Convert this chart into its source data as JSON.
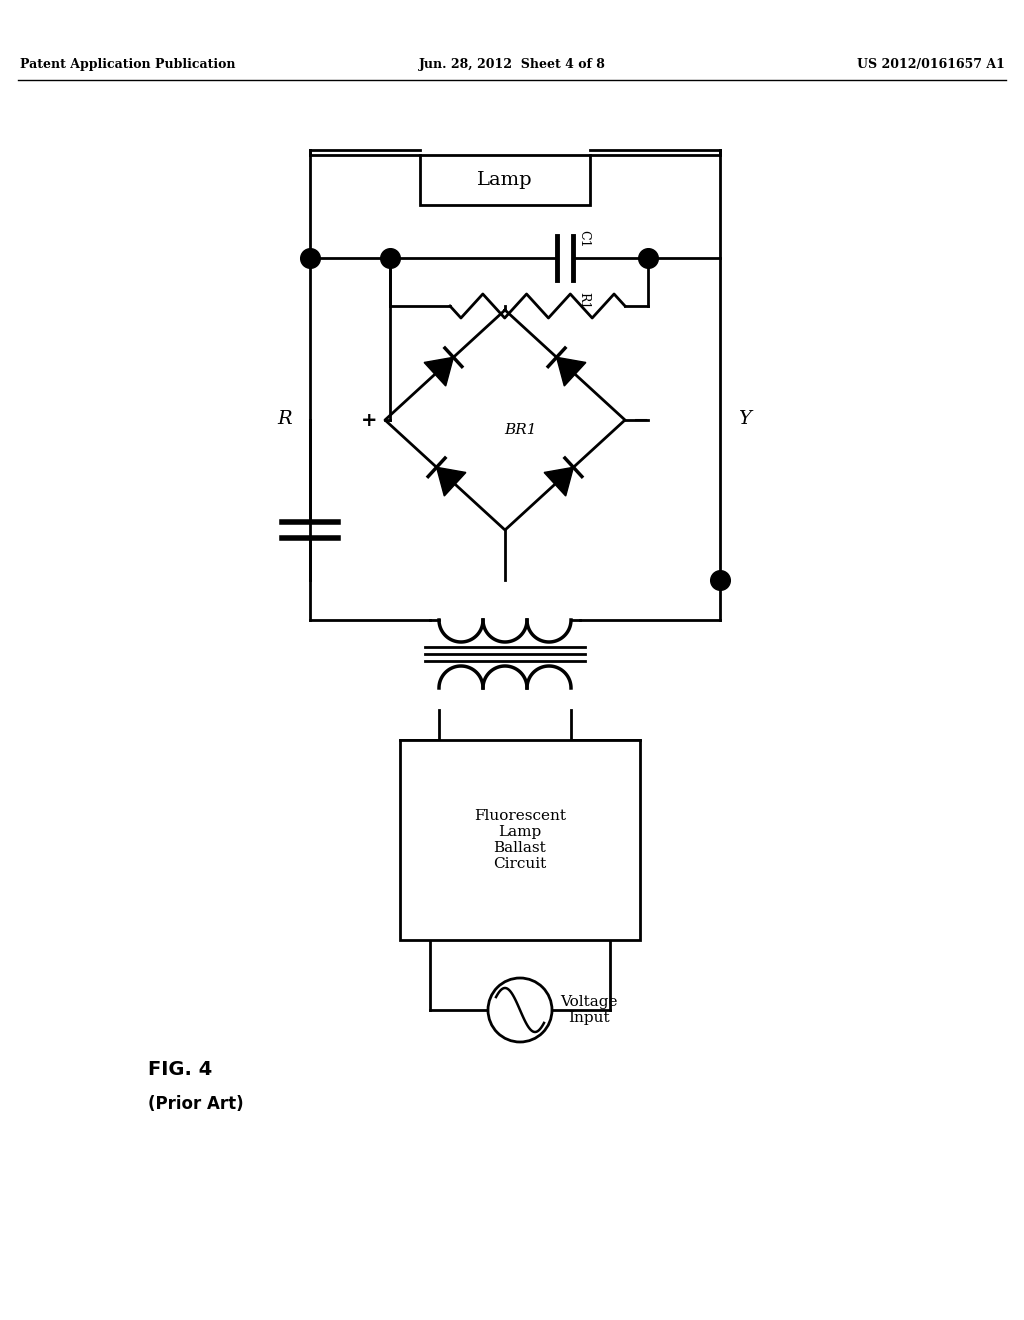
{
  "bg_color": "#ffffff",
  "header_left": "Patent Application Publication",
  "header_mid": "Jun. 28, 2012  Sheet 4 of 8",
  "header_right": "US 2012/0161657 A1",
  "fig_label": "FIG. 4",
  "fig_sublabel": "(Prior Art)",
  "label_R": "R",
  "label_Y": "Y",
  "label_Lamp": "Lamp",
  "label_C1": "C1",
  "label_R1": "R1",
  "label_BR1": "BR1",
  "label_Ballast": "Fluorescent\nLamp\nBallast\nCircuit",
  "label_Voltage": "Voltage\nInput",
  "line_color": "#000000",
  "line_width": 2.0,
  "dot_size": 100
}
